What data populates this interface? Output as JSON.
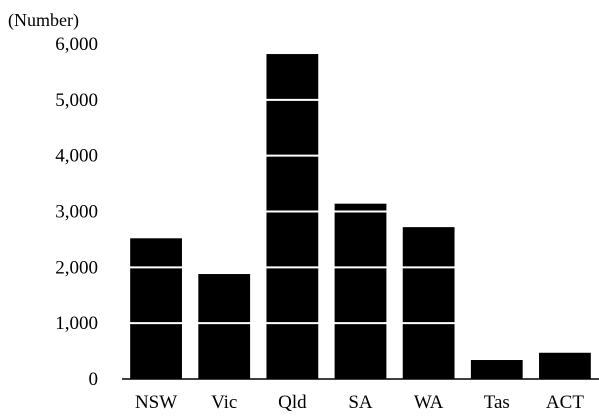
{
  "chart_data": {
    "type": "bar",
    "ylabel": "(Number)",
    "categories": [
      "NSW",
      "Vic",
      "Qld",
      "SA",
      "WA",
      "Tas",
      "ACT"
    ],
    "values": [
      2520,
      1880,
      5820,
      3140,
      2720,
      340,
      470
    ],
    "ylim": [
      0,
      6000
    ],
    "yticks": [
      0,
      1000,
      2000,
      3000,
      4000,
      5000,
      6000
    ],
    "ytick_labels": [
      "0",
      "1,000",
      "2,000",
      "3,000",
      "4,000",
      "5,000",
      "6,000"
    ],
    "grid": true,
    "bar_color": "#000000",
    "grid_color": "#ffffff"
  }
}
